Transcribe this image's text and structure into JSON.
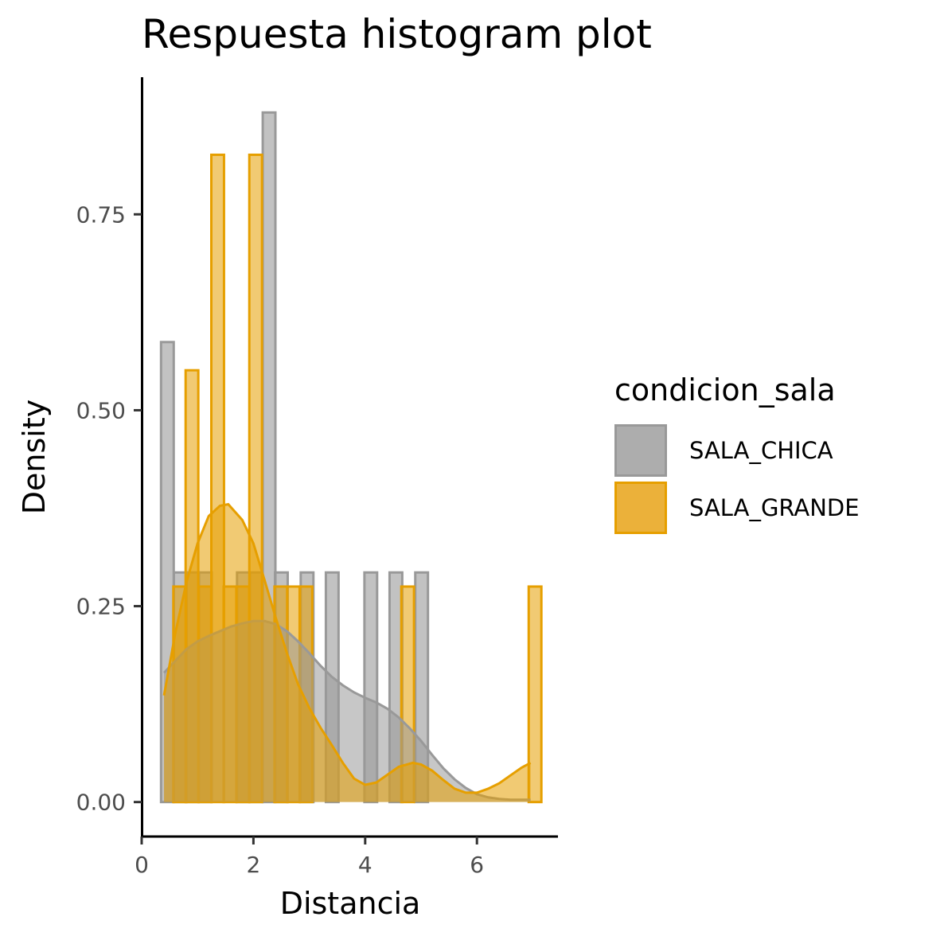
{
  "chart_data": {
    "type": "bar",
    "subtype": "histogram with density overlay",
    "title": "Respuesta histogram plot",
    "xlabel": "Distancia",
    "ylabel": "Density",
    "xlim": [
      0,
      7.45
    ],
    "ylim": [
      -0.044,
      0.925
    ],
    "x_ticks": [
      0,
      2,
      4,
      6
    ],
    "x_tick_labels": [
      "0",
      "2",
      "4",
      "6"
    ],
    "y_ticks": [
      0,
      0.25,
      0.5,
      0.75
    ],
    "y_tick_labels": [
      "0.00",
      "0.25",
      "0.50",
      "0.75"
    ],
    "grid": false,
    "legend": {
      "title": "condicion_sala",
      "position": "right"
    },
    "bin_width": 0.227,
    "series": [
      {
        "name": "SALA_CHICA",
        "fill": "#999999",
        "stroke": "#999999",
        "bins": [
          {
            "x": 0.46,
            "y": 0.587
          },
          {
            "x": 0.69,
            "y": 0.293
          },
          {
            "x": 0.91,
            "y": 0.293
          },
          {
            "x": 1.14,
            "y": 0.293
          },
          {
            "x": 1.82,
            "y": 0.293
          },
          {
            "x": 2.05,
            "y": 0.293
          },
          {
            "x": 2.28,
            "y": 0.88
          },
          {
            "x": 2.5,
            "y": 0.293
          },
          {
            "x": 2.96,
            "y": 0.293
          },
          {
            "x": 3.41,
            "y": 0.293
          },
          {
            "x": 4.1,
            "y": 0.293
          },
          {
            "x": 4.55,
            "y": 0.293
          },
          {
            "x": 5.01,
            "y": 0.293
          }
        ],
        "density": {
          "x": [
            0.4,
            0.6,
            0.8,
            1.0,
            1.2,
            1.4,
            1.6,
            1.8,
            2.0,
            2.2,
            2.4,
            2.6,
            2.8,
            3.0,
            3.2,
            3.4,
            3.6,
            3.8,
            4.0,
            4.2,
            4.4,
            4.6,
            4.8,
            5.0,
            5.2,
            5.4,
            5.6,
            5.8,
            6.0,
            6.2,
            6.4,
            6.6,
            6.8,
            6.96
          ],
          "y": [
            0.165,
            0.18,
            0.195,
            0.205,
            0.212,
            0.218,
            0.224,
            0.228,
            0.231,
            0.231,
            0.227,
            0.218,
            0.205,
            0.19,
            0.174,
            0.16,
            0.149,
            0.14,
            0.133,
            0.127,
            0.119,
            0.108,
            0.094,
            0.078,
            0.06,
            0.043,
            0.029,
            0.018,
            0.01,
            0.006,
            0.004,
            0.003,
            0.003,
            0.003
          ]
        }
      },
      {
        "name": "SALA_GRANDE",
        "fill": "#E69F00",
        "stroke": "#E69F00",
        "bins": [
          {
            "x": 0.68,
            "y": 0.275
          },
          {
            "x": 0.9,
            "y": 0.551
          },
          {
            "x": 1.13,
            "y": 0.275
          },
          {
            "x": 1.36,
            "y": 0.826
          },
          {
            "x": 1.58,
            "y": 0.275
          },
          {
            "x": 1.81,
            "y": 0.275
          },
          {
            "x": 2.04,
            "y": 0.826
          },
          {
            "x": 2.49,
            "y": 0.275
          },
          {
            "x": 2.72,
            "y": 0.275
          },
          {
            "x": 2.94,
            "y": 0.275
          },
          {
            "x": 4.76,
            "y": 0.275
          },
          {
            "x": 7.04,
            "y": 0.275
          }
        ],
        "density": {
          "x": [
            0.4,
            0.6,
            0.8,
            1.0,
            1.2,
            1.4,
            1.55,
            1.8,
            2.0,
            2.2,
            2.4,
            2.6,
            2.8,
            3.0,
            3.2,
            3.4,
            3.6,
            3.8,
            4.0,
            4.2,
            4.4,
            4.6,
            4.85,
            5.0,
            5.2,
            5.4,
            5.6,
            5.8,
            6.0,
            6.2,
            6.4,
            6.6,
            6.8,
            6.96
          ],
          "y": [
            0.136,
            0.215,
            0.28,
            0.33,
            0.365,
            0.378,
            0.38,
            0.36,
            0.33,
            0.283,
            0.235,
            0.19,
            0.15,
            0.12,
            0.095,
            0.073,
            0.05,
            0.03,
            0.022,
            0.025,
            0.035,
            0.045,
            0.05,
            0.048,
            0.04,
            0.028,
            0.017,
            0.012,
            0.012,
            0.017,
            0.024,
            0.034,
            0.044,
            0.05
          ]
        }
      }
    ]
  }
}
